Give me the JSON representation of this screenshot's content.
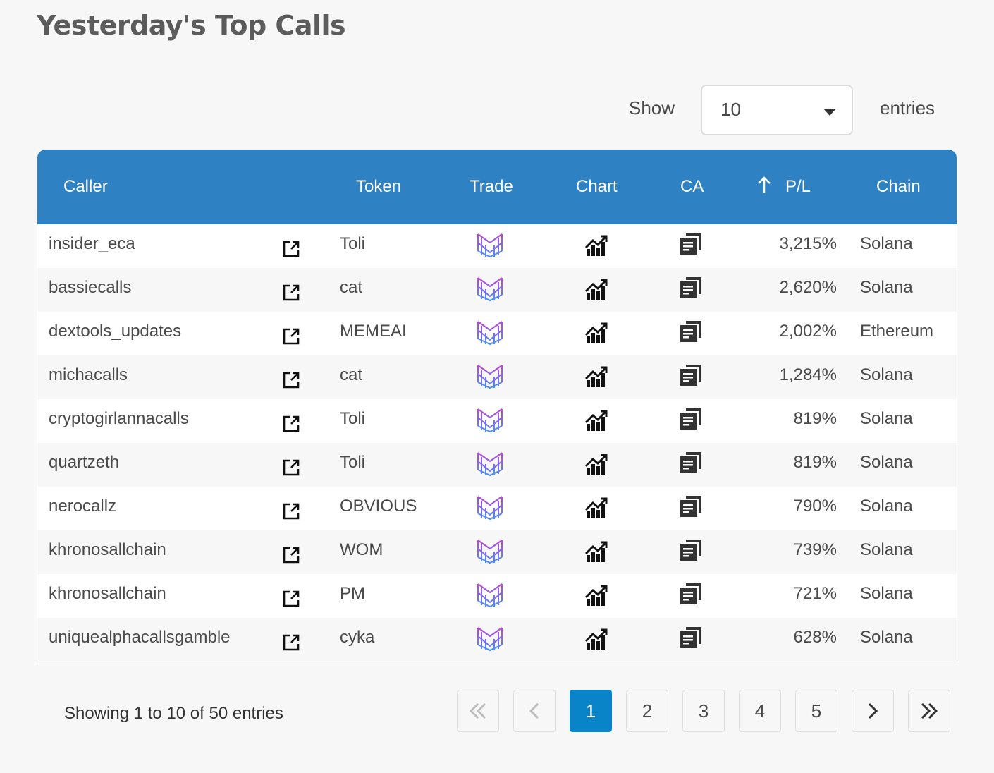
{
  "title": "Yesterday's Top Calls",
  "length": {
    "show_label": "Show",
    "selected": "10",
    "entries_label": "entries"
  },
  "columns": {
    "caller": "Caller",
    "token": "Token",
    "trade": "Trade",
    "chart": "Chart",
    "ca": "CA",
    "pl": "P/L",
    "chain": "Chain"
  },
  "sort": {
    "column": "pl",
    "direction_icon": "arrow-up-icon"
  },
  "rows": [
    {
      "caller": "insider_eca",
      "token": "Toli",
      "pl": "3,215%",
      "chain": "Solana"
    },
    {
      "caller": "bassiecalls",
      "token": "cat",
      "pl": "2,620%",
      "chain": "Solana"
    },
    {
      "caller": "dextools_updates",
      "token": "MEMEAI",
      "pl": "2,002%",
      "chain": "Ethereum"
    },
    {
      "caller": "michacalls",
      "token": "cat",
      "pl": "1,284%",
      "chain": "Solana"
    },
    {
      "caller": "cryptogirlannacalls",
      "token": "Toli",
      "pl": "819%",
      "chain": "Solana"
    },
    {
      "caller": "quartzeth",
      "token": "Toli",
      "pl": "819%",
      "chain": "Solana"
    },
    {
      "caller": "nerocallz",
      "token": "OBVIOUS",
      "pl": "790%",
      "chain": "Solana"
    },
    {
      "caller": "khronosallchain",
      "token": "WOM",
      "pl": "739%",
      "chain": "Solana"
    },
    {
      "caller": "khronosallchain",
      "token": "PM",
      "pl": "721%",
      "chain": "Solana"
    },
    {
      "caller": "uniquealphacallsgamble",
      "token": "cyka",
      "pl": "628%",
      "chain": "Solana"
    }
  ],
  "info": "Showing 1 to 10 of 50 entries",
  "pagination": {
    "pages": [
      "1",
      "2",
      "3",
      "4",
      "5"
    ],
    "current": "1"
  },
  "colors": {
    "header": "#2e82c4",
    "active_page": "#0a84c8",
    "trade_icon_top": "#c040e0",
    "trade_icon_bottom": "#4a90f0"
  }
}
